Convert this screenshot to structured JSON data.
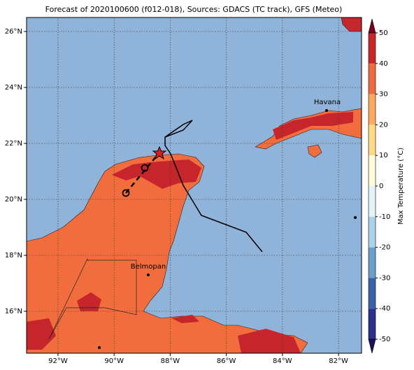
{
  "map": {
    "title": "Forecast of 2020100600 (f012-018), Sources: GDACS (TC track), GFS (Meteo)",
    "xlim": [
      -93.12,
      -81.18
    ],
    "ylim": [
      14.5,
      26.5
    ],
    "xticks": [
      {
        "value": -92,
        "label": "92°W"
      },
      {
        "value": -90,
        "label": "90°W"
      },
      {
        "value": -88,
        "label": "88°W"
      },
      {
        "value": -86,
        "label": "86°W"
      },
      {
        "value": -84,
        "label": "84°W"
      },
      {
        "value": -82,
        "label": "82°W"
      }
    ],
    "yticks": [
      {
        "value": 16,
        "label": "16°N"
      },
      {
        "value": 18,
        "label": "18°N"
      },
      {
        "value": 20,
        "label": "20°N"
      },
      {
        "value": 22,
        "label": "22°N"
      },
      {
        "value": 24,
        "label": "24°N"
      },
      {
        "value": 26,
        "label": "26°N"
      }
    ],
    "cities": [
      "Havana",
      "Belmopan"
    ]
  },
  "colorbar": {
    "label": "Max Temperature (°C)",
    "lim": [
      -50,
      50
    ],
    "ticks": [
      -50,
      -40,
      -30,
      -20,
      -10,
      0,
      10,
      20,
      30,
      40,
      50
    ],
    "colors": [
      "#2b2f8e",
      "#3a62a8",
      "#6b9ec9",
      "#a9d3e6",
      "#e3f2f5",
      "#fffbd8",
      "#fed98a",
      "#fbac5f",
      "#ee6c3f",
      "#c6252b"
    ]
  }
}
